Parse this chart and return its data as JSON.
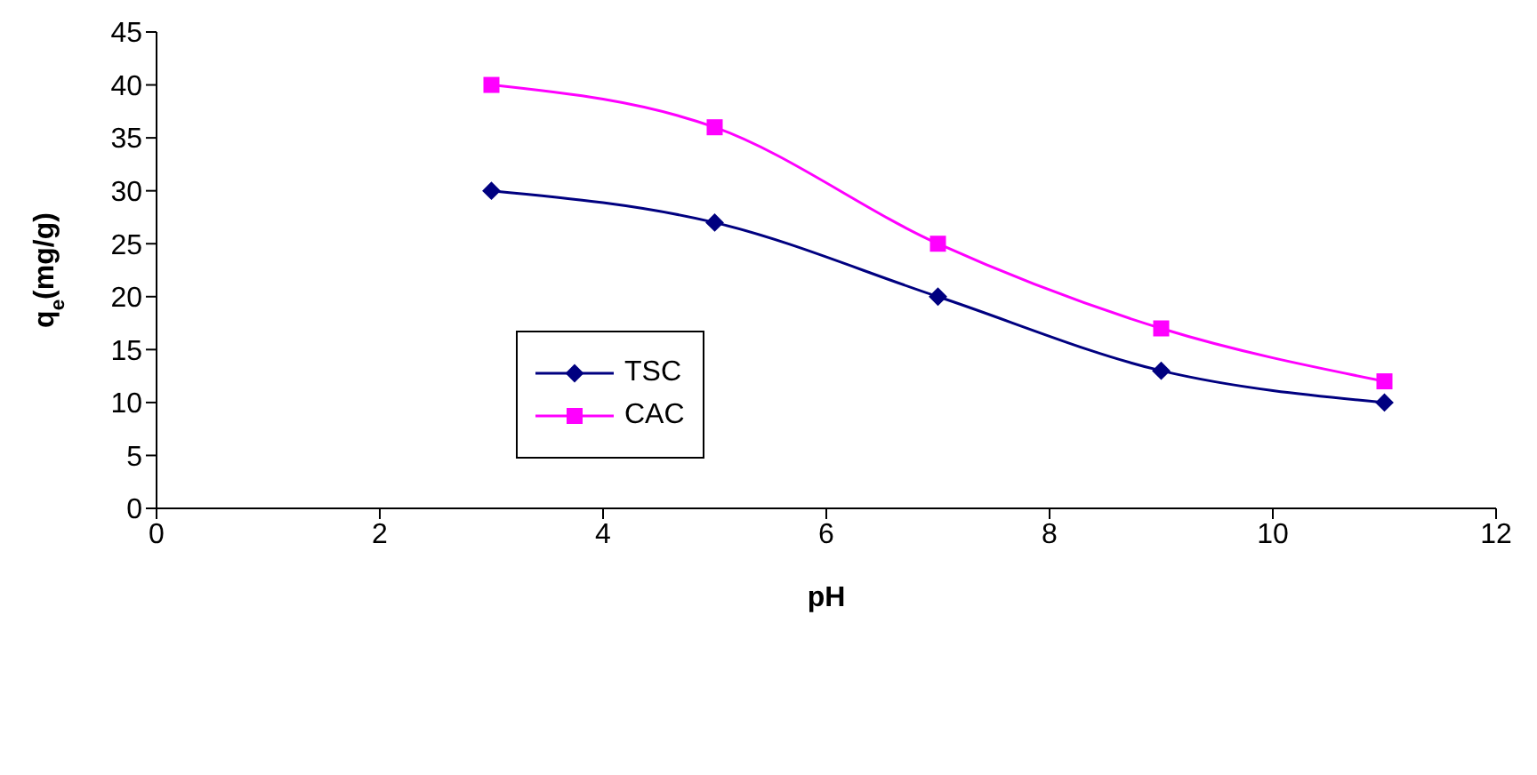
{
  "chart_data": {
    "type": "line",
    "xlabel": "pH",
    "ylabel": "q$_{e}$(mg/g)",
    "x": [
      3,
      5,
      7,
      9,
      11
    ],
    "series": [
      {
        "name": "TSC",
        "color": "#000080",
        "marker": "diamond",
        "values": [
          30,
          27,
          20,
          13,
          10
        ]
      },
      {
        "name": "CAC",
        "color": "#ff00ff",
        "marker": "square",
        "values": [
          40,
          36,
          25,
          17,
          12
        ]
      }
    ],
    "xlim": [
      0,
      12
    ],
    "xticks": [
      0,
      2,
      4,
      6,
      8,
      10,
      12
    ],
    "ylim": [
      0,
      45
    ],
    "yticks": [
      0,
      5,
      10,
      15,
      20,
      25,
      30,
      35,
      40,
      45
    ],
    "grid": false,
    "legend": "left",
    "line_style": "solid"
  }
}
